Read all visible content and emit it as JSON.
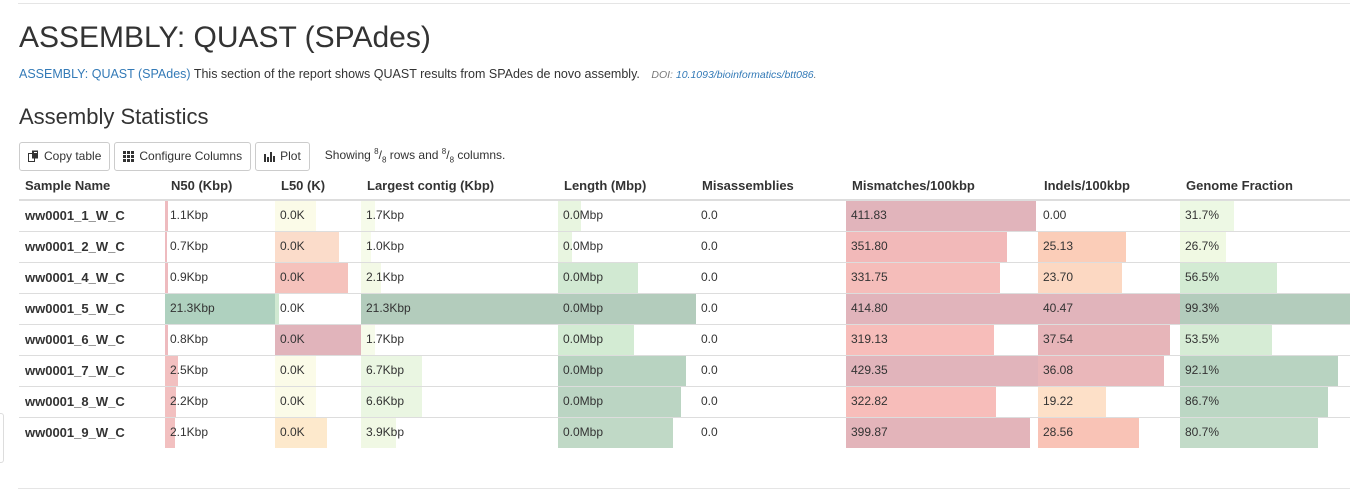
{
  "page": {
    "title": "ASSEMBLY: QUAST (SPAdes)",
    "description_link": "ASSEMBLY: QUAST (SPAdes)",
    "description_text": " This section of the report shows QUAST results from SPAdes de novo assembly.",
    "doi_label": "DOI: ",
    "doi_link": "10.1093/bioinformatics/btt086",
    "doi_suffix": "."
  },
  "section": {
    "title": "Assembly Statistics"
  },
  "toolbar": {
    "copy_label": "Copy table",
    "configure_label": "Configure Columns",
    "plot_label": "Plot",
    "showing_prefix": "Showing ",
    "rows_num": "8",
    "rows_den": "8",
    "rows_text": " rows and ",
    "cols_num": "8",
    "cols_den": "8",
    "cols_text": " columns."
  },
  "table": {
    "headers": [
      "Sample Name",
      "N50 (Kbp)",
      "L50 (K)",
      "Largest contig (Kbp)",
      "Length (Mbp)",
      "Misassemblies",
      "Mismatches/100kbp",
      "Indels/100kbp",
      "Genome Fraction"
    ],
    "rows": [
      {
        "name": "ww0001_1_W_C",
        "cells": [
          {
            "text": "1.1Kbp",
            "fill": 0.03,
            "color": "#eebbbf"
          },
          {
            "text": "0.0K",
            "fill": 0.48,
            "color": "#fbfbe8"
          },
          {
            "text": "1.7Kbp",
            "fill": 0.07,
            "color": "#f6fbea"
          },
          {
            "text": "0.0Mbp",
            "fill": 0.17,
            "color": "#e8f5e0"
          },
          {
            "text": "0.0",
            "fill": 0,
            "color": "#ffffff"
          },
          {
            "text": "411.83",
            "fill": 0.99,
            "color": "#e1b4bb"
          },
          {
            "text": "0.00",
            "fill": 0,
            "color": "#ffffff"
          },
          {
            "text": "31.7%",
            "fill": 0.32,
            "color": "#edf8e4"
          }
        ]
      },
      {
        "name": "ww0001_2_W_C",
        "cells": [
          {
            "text": "0.7Kbp",
            "fill": 0.02,
            "color": "#eebbbf"
          },
          {
            "text": "0.0K",
            "fill": 0.74,
            "color": "#fbdcca"
          },
          {
            "text": "1.0Kbp",
            "fill": 0.05,
            "color": "#f6fbea"
          },
          {
            "text": "0.0Mbp",
            "fill": 0.1,
            "color": "#e8f5e0"
          },
          {
            "text": "0.0",
            "fill": 0,
            "color": "#ffffff"
          },
          {
            "text": "351.80",
            "fill": 0.84,
            "color": "#f2b9b9"
          },
          {
            "text": "25.13",
            "fill": 0.62,
            "color": "#fbcdb8"
          },
          {
            "text": "26.7%",
            "fill": 0.27,
            "color": "#f0f9e3"
          }
        ]
      },
      {
        "name": "ww0001_4_W_C",
        "cells": [
          {
            "text": "0.9Kbp",
            "fill": 0.03,
            "color": "#eebbbf"
          },
          {
            "text": "0.0K",
            "fill": 0.85,
            "color": "#f5c2bc"
          },
          {
            "text": "2.1Kbp",
            "fill": 0.1,
            "color": "#f3f9e6"
          },
          {
            "text": "0.0Mbp",
            "fill": 0.58,
            "color": "#d1e9d2"
          },
          {
            "text": "0.0",
            "fill": 0,
            "color": "#ffffff"
          },
          {
            "text": "331.75",
            "fill": 0.8,
            "color": "#f5bdba"
          },
          {
            "text": "23.70",
            "fill": 0.59,
            "color": "#fcd8c2"
          },
          {
            "text": "56.5%",
            "fill": 0.57,
            "color": "#d3ebd3"
          }
        ]
      },
      {
        "name": "ww0001_5_W_C",
        "cells": [
          {
            "text": "21.3Kbp",
            "fill": 1.0,
            "color": "#afd1bf"
          },
          {
            "text": "0.0K",
            "fill": 0.05,
            "color": "#d1e9d2"
          },
          {
            "text": "21.3Kbp",
            "fill": 1.0,
            "color": "#b3ccbc"
          },
          {
            "text": "0.0Mbp",
            "fill": 1.0,
            "color": "#b3ccbc"
          },
          {
            "text": "0.0",
            "fill": 0,
            "color": "#ffffff"
          },
          {
            "text": "414.80",
            "fill": 1.0,
            "color": "#e1b4bb"
          },
          {
            "text": "40.47",
            "fill": 1.0,
            "color": "#e1b4bb"
          },
          {
            "text": "99.3%",
            "fill": 1.0,
            "color": "#b3ccbc"
          }
        ]
      },
      {
        "name": "ww0001_6_W_C",
        "cells": [
          {
            "text": "0.8Kbp",
            "fill": 0.03,
            "color": "#eebbbf"
          },
          {
            "text": "0.0K",
            "fill": 1.0,
            "color": "#e1b4bb"
          },
          {
            "text": "1.7Kbp",
            "fill": 0.07,
            "color": "#f6fbea"
          },
          {
            "text": "0.0Mbp",
            "fill": 0.55,
            "color": "#d3ebd3"
          },
          {
            "text": "0.0",
            "fill": 0,
            "color": "#ffffff"
          },
          {
            "text": "319.13",
            "fill": 0.77,
            "color": "#f7bdba"
          },
          {
            "text": "37.54",
            "fill": 0.93,
            "color": "#e7b5b9"
          },
          {
            "text": "53.5%",
            "fill": 0.54,
            "color": "#d6ecd5"
          }
        ]
      },
      {
        "name": "ww0001_7_W_C",
        "cells": [
          {
            "text": "2.5Kbp",
            "fill": 0.12,
            "color": "#f2c0c0"
          },
          {
            "text": "0.0K",
            "fill": 0.48,
            "color": "#fbfbe8"
          },
          {
            "text": "6.7Kbp",
            "fill": 0.31,
            "color": "#eaf6e2"
          },
          {
            "text": "0.0Mbp",
            "fill": 0.93,
            "color": "#b8d3c1"
          },
          {
            "text": "0.0",
            "fill": 0,
            "color": "#ffffff"
          },
          {
            "text": "429.35",
            "fill": 1.0,
            "color": "#e1b4bb"
          },
          {
            "text": "36.08",
            "fill": 0.89,
            "color": "#eab7ba"
          },
          {
            "text": "92.1%",
            "fill": 0.93,
            "color": "#b8d3c1"
          }
        ]
      },
      {
        "name": "ww0001_8_W_C",
        "cells": [
          {
            "text": "2.2Kbp",
            "fill": 0.1,
            "color": "#f2c0c0"
          },
          {
            "text": "0.0K",
            "fill": 0.48,
            "color": "#fbfbe8"
          },
          {
            "text": "6.6Kbp",
            "fill": 0.31,
            "color": "#eaf6e2"
          },
          {
            "text": "0.0Mbp",
            "fill": 0.89,
            "color": "#bbd5c3"
          },
          {
            "text": "0.0",
            "fill": 0,
            "color": "#ffffff"
          },
          {
            "text": "322.82",
            "fill": 0.78,
            "color": "#f7bdba"
          },
          {
            "text": "19.22",
            "fill": 0.48,
            "color": "#fde0c8"
          },
          {
            "text": "86.7%",
            "fill": 0.87,
            "color": "#bcd7c4"
          }
        ]
      },
      {
        "name": "ww0001_9_W_C",
        "cells": [
          {
            "text": "2.1Kbp",
            "fill": 0.09,
            "color": "#f2c0c0"
          },
          {
            "text": "0.0K",
            "fill": 0.6,
            "color": "#fde9cc"
          },
          {
            "text": "3.9Kbp",
            "fill": 0.18,
            "color": "#f0f8e4"
          },
          {
            "text": "0.0Mbp",
            "fill": 0.83,
            "color": "#c0d9c6"
          },
          {
            "text": "0.0",
            "fill": 0,
            "color": "#ffffff"
          },
          {
            "text": "399.87",
            "fill": 0.96,
            "color": "#e3b4ba"
          },
          {
            "text": "28.56",
            "fill": 0.71,
            "color": "#f9c3b6"
          },
          {
            "text": "80.7%",
            "fill": 0.81,
            "color": "#c2dbc8"
          }
        ]
      }
    ]
  }
}
